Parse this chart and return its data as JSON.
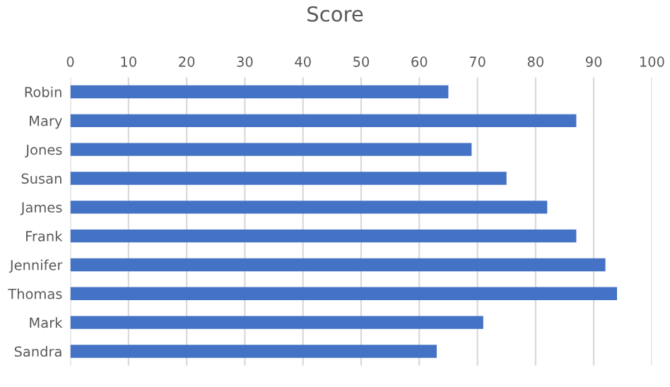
{
  "chart_data": {
    "type": "bar",
    "orientation": "horizontal",
    "title": "Score",
    "categories": [
      "Robin",
      "Mary",
      "Jones",
      "Susan",
      "James",
      "Frank",
      "Jennifer",
      "Thomas",
      "Mark",
      "Sandra"
    ],
    "values": [
      65,
      87,
      69,
      75,
      82,
      87,
      92,
      94,
      71,
      63
    ],
    "color": "#4472c4",
    "xlim": [
      0,
      100
    ],
    "xticks": [
      0,
      10,
      20,
      30,
      40,
      50,
      60,
      70,
      80,
      90,
      100
    ],
    "grid": "x",
    "legend": false
  }
}
